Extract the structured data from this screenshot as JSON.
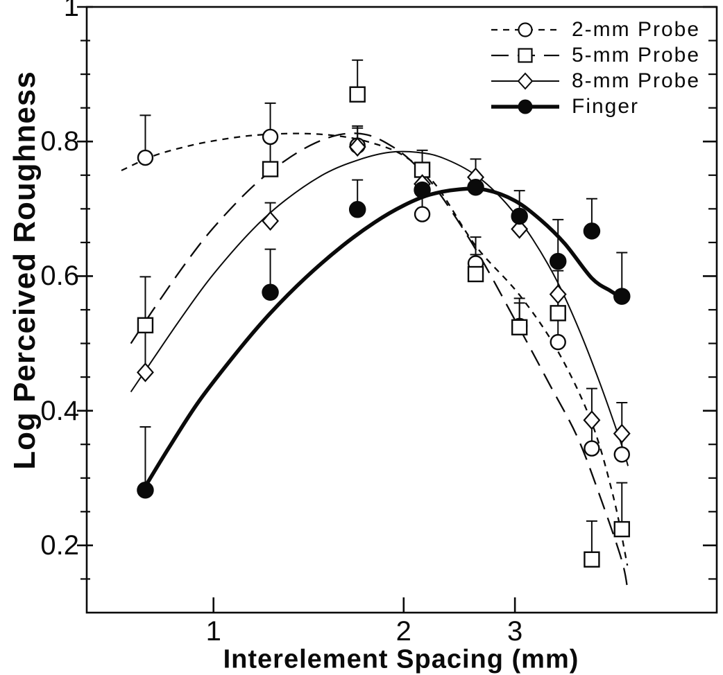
{
  "chart_data": {
    "type": "line",
    "title": "",
    "xlabel": "Interelement Spacing (mm)",
    "ylabel": "Log Perceived Roughness",
    "x_scale": "log",
    "xlim": [
      0.63,
      6.26
    ],
    "ylim": [
      0.1,
      1.0
    ],
    "x_ticks": [
      1,
      2,
      3
    ],
    "x_tick_labels": [
      "1",
      "2",
      "3"
    ],
    "y_major_ticks": [
      0.2,
      0.4,
      0.6,
      0.8,
      1.0
    ],
    "y_tick_labels": [
      "0.2",
      "0.4",
      "0.6",
      "0.8",
      "1"
    ],
    "y_minor_step": 0.05,
    "grid": false,
    "legend_position": "top-right",
    "x": [
      0.78,
      1.23,
      1.69,
      2.14,
      2.6,
      3.05,
      3.51,
      3.97,
      4.43
    ],
    "series": [
      {
        "name": "2-mm Probe",
        "marker": "open-circle",
        "line_style": "short-dash",
        "values": [
          0.776,
          0.807,
          0.794,
          0.692,
          0.619,
          0.526,
          0.502,
          0.344,
          0.335
        ],
        "error_top": [
          0.839,
          0.857,
          0.823,
          0.728,
          0.658,
          0.567,
          0.573,
          0.386,
          0.366
        ],
        "fit_curve": [
          [
            0.715,
            0.757
          ],
          [
            0.8,
            0.778
          ],
          [
            0.9,
            0.792
          ],
          [
            1.0,
            0.801
          ],
          [
            1.15,
            0.809
          ],
          [
            1.35,
            0.812
          ],
          [
            1.55,
            0.809
          ],
          [
            1.75,
            0.8
          ],
          [
            2.0,
            0.779
          ],
          [
            2.25,
            0.735
          ],
          [
            2.6,
            0.645
          ],
          [
            3.05,
            0.572
          ],
          [
            3.51,
            0.488
          ],
          [
            3.97,
            0.382
          ],
          [
            4.3,
            0.27
          ],
          [
            4.52,
            0.17
          ]
        ]
      },
      {
        "name": "5-mm Probe",
        "marker": "open-square",
        "line_style": "long-dash",
        "values": [
          0.527,
          0.759,
          0.87,
          0.758,
          0.603,
          0.524,
          0.545,
          0.179,
          0.224
        ],
        "error_top": [
          0.599,
          0.807,
          0.921,
          0.787,
          0.632,
          0.56,
          0.573,
          0.236,
          0.293
        ],
        "fit_curve": [
          [
            0.74,
            0.5
          ],
          [
            0.8,
            0.548
          ],
          [
            0.9,
            0.617
          ],
          [
            1.0,
            0.672
          ],
          [
            1.15,
            0.732
          ],
          [
            1.3,
            0.772
          ],
          [
            1.45,
            0.798
          ],
          [
            1.6,
            0.811
          ],
          [
            1.75,
            0.81
          ],
          [
            1.9,
            0.795
          ],
          [
            2.05,
            0.772
          ],
          [
            2.25,
            0.73
          ],
          [
            2.6,
            0.64
          ],
          [
            3.0,
            0.535
          ],
          [
            3.4,
            0.44
          ],
          [
            3.77,
            0.36
          ],
          [
            4.1,
            0.27
          ],
          [
            4.43,
            0.177
          ],
          [
            4.53,
            0.13
          ]
        ]
      },
      {
        "name": "8-mm Probe",
        "marker": "open-diamond",
        "line_style": "solid-thin",
        "values": [
          0.457,
          0.682,
          0.792,
          0.737,
          0.747,
          0.67,
          0.573,
          0.386,
          0.366
        ],
        "error_top": [
          0.527,
          0.709,
          0.82,
          0.758,
          0.774,
          0.69,
          0.608,
          0.433,
          0.412
        ],
        "fit_curve": [
          [
            0.74,
            0.428
          ],
          [
            0.8,
            0.475
          ],
          [
            0.9,
            0.545
          ],
          [
            1.0,
            0.603
          ],
          [
            1.15,
            0.668
          ],
          [
            1.3,
            0.713
          ],
          [
            1.5,
            0.752
          ],
          [
            1.7,
            0.773
          ],
          [
            1.9,
            0.784
          ],
          [
            2.1,
            0.784
          ],
          [
            2.3,
            0.776
          ],
          [
            2.6,
            0.75
          ],
          [
            2.9,
            0.709
          ],
          [
            3.2,
            0.655
          ],
          [
            3.5,
            0.592
          ],
          [
            3.8,
            0.518
          ],
          [
            4.1,
            0.438
          ],
          [
            4.43,
            0.348
          ],
          [
            4.53,
            0.318
          ]
        ]
      },
      {
        "name": "Finger",
        "marker": "filled-circle",
        "line_style": "solid-thick",
        "values": [
          0.282,
          0.576,
          0.699,
          0.728,
          0.732,
          0.689,
          0.622,
          0.667,
          0.57
        ],
        "error_top": [
          0.376,
          0.64,
          0.743,
          0.737,
          0.747,
          0.727,
          0.684,
          0.715,
          0.635
        ],
        "fit_curve": [
          [
            0.776,
            0.284
          ],
          [
            0.85,
            0.345
          ],
          [
            0.95,
            0.415
          ],
          [
            1.1,
            0.492
          ],
          [
            1.23,
            0.545
          ],
          [
            1.4,
            0.598
          ],
          [
            1.6,
            0.645
          ],
          [
            1.8,
            0.68
          ],
          [
            2.0,
            0.705
          ],
          [
            2.2,
            0.721
          ],
          [
            2.45,
            0.729
          ],
          [
            2.7,
            0.728
          ],
          [
            3.0,
            0.712
          ],
          [
            3.3,
            0.683
          ],
          [
            3.6,
            0.648
          ],
          [
            3.97,
            0.597
          ],
          [
            4.25,
            0.578
          ],
          [
            4.43,
            0.568
          ],
          [
            4.5,
            0.565
          ]
        ]
      }
    ]
  },
  "colors": {
    "ink": "#0a0a0a",
    "paper": "#ffffff"
  }
}
